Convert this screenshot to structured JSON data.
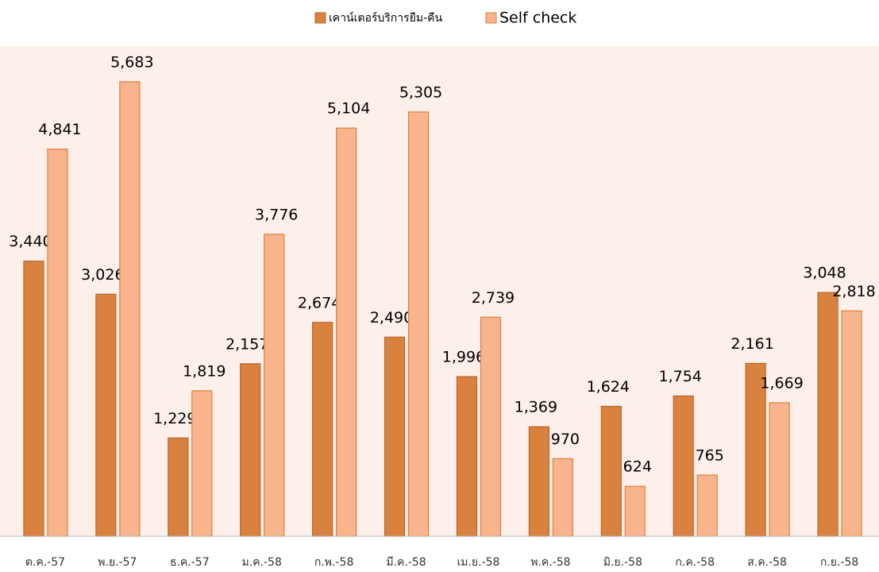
{
  "chart_data": {
    "type": "bar",
    "categories": [
      "ต.ค.-57",
      "พ.ย.-57",
      "ธ.ค.-57",
      "ม.ค.-58",
      "ก.พ.-58",
      "มี.ค.-58",
      "เม.ย.-58",
      "พ.ค.-58",
      "มิ.ย.-58",
      "ก.ค.-58",
      "ส.ค.-58",
      "ก.ย.-58"
    ],
    "series": [
      {
        "name": "เคาน์เตอร์บริการยืม-คืน",
        "color": "#d9823f",
        "values": [
          3440,
          3026,
          1229,
          2157,
          2674,
          2490,
          1996,
          1369,
          1624,
          1754,
          2161,
          3048
        ],
        "value_labels": [
          "3,440",
          "3,026",
          "1,229",
          "2,157",
          "2,674",
          "2,490",
          "1,996",
          "1,369",
          "1,624",
          "1,754",
          "2,161",
          "3,048"
        ]
      },
      {
        "name": "Self check",
        "color": "#f8b48c",
        "values": [
          4841,
          5683,
          1819,
          3776,
          5104,
          5305,
          2739,
          970,
          624,
          765,
          1669,
          2818
        ],
        "value_labels": [
          "4,841",
          "5,683",
          "1,819",
          "3,776",
          "5,104",
          "5,305",
          "2,739",
          "970",
          "624",
          "765",
          "1,669",
          "2,818"
        ]
      }
    ],
    "ylim": [
      0,
      6000
    ],
    "legend": "top"
  }
}
